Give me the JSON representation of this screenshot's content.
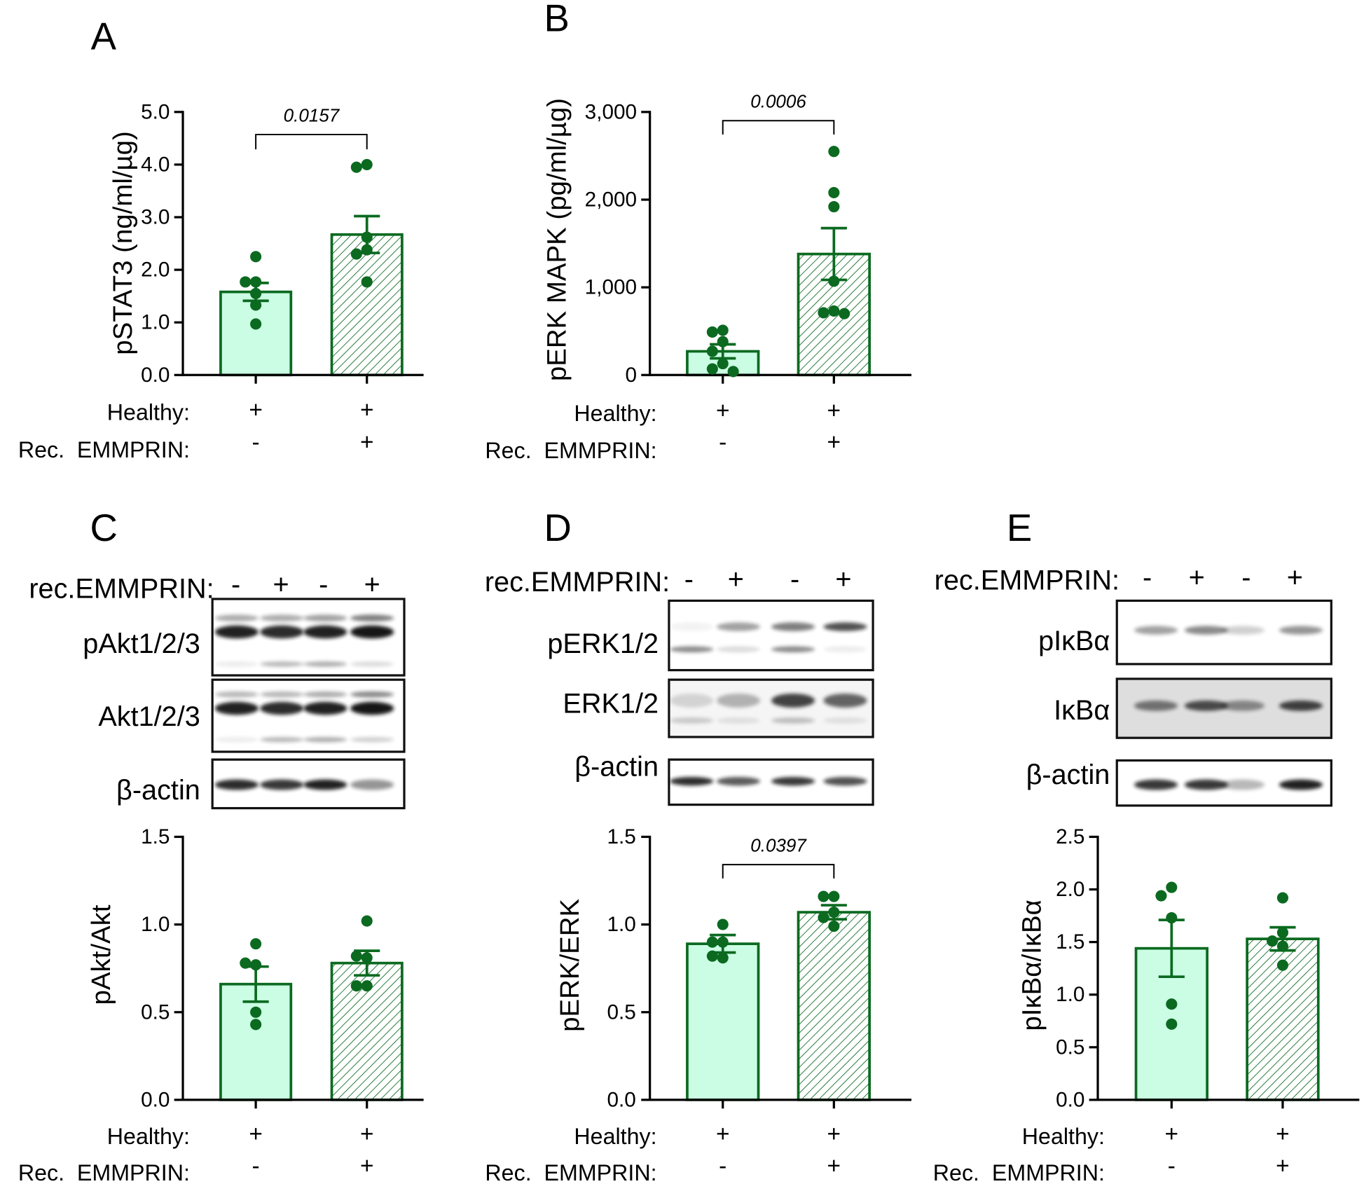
{
  "colors": {
    "bar_stroke": "#0b6a20",
    "control_fill": "#cbfde4",
    "hatch": "#0b6a20",
    "dot": "#0b6a20",
    "axis": "#000000",
    "blot_band": "#141414",
    "blot_frame": "#111111"
  },
  "chart_data": [
    {
      "panel": "A",
      "type": "bar",
      "ylabel": "pSTAT3 (ng/ml/µg)",
      "ylim": [
        0,
        5
      ],
      "yticks": [
        0,
        1,
        2,
        3,
        4,
        5
      ],
      "ytick_labels": [
        "0.0",
        "1.0",
        "2.0",
        "3.0",
        "4.0",
        "5.0"
      ],
      "x_rows": [
        {
          "label": "Healthy:",
          "values": [
            "+",
            "+"
          ]
        },
        {
          "label": "Rec.  EMMPRIN:",
          "values": [
            "-",
            "+"
          ]
        }
      ],
      "bars": [
        {
          "hatched": false,
          "mean": 1.58,
          "sem": 0.17,
          "points": [
            2.25,
            1.77,
            1.77,
            1.55,
            1.33,
            0.97
          ]
        },
        {
          "hatched": true,
          "mean": 2.67,
          "sem": 0.35,
          "points": [
            4.0,
            3.95,
            2.62,
            2.38,
            2.3,
            1.77
          ]
        }
      ],
      "significance": {
        "label": "0.0157",
        "between": [
          0,
          1
        ]
      }
    },
    {
      "panel": "B",
      "type": "bar",
      "ylabel": "pERK MAPK (pg/ml/µg)",
      "ylim": [
        0,
        3000
      ],
      "yticks": [
        0,
        1000,
        2000,
        3000
      ],
      "ytick_labels": [
        "0",
        "1,000",
        "2,000",
        "3,000"
      ],
      "x_rows": [
        {
          "label": "Healthy:",
          "values": [
            "+",
            "+"
          ]
        },
        {
          "label": "Rec.  EMMPRIN:",
          "values": [
            "-",
            "+"
          ]
        }
      ],
      "bars": [
        {
          "hatched": false,
          "mean": 270,
          "sem": 80,
          "points": [
            510,
            490,
            380,
            270,
            130,
            70,
            40
          ]
        },
        {
          "hatched": true,
          "mean": 1380,
          "sem": 295,
          "points": [
            2550,
            2080,
            1920,
            1070,
            730,
            710,
            700
          ]
        }
      ],
      "significance": {
        "label": "0.0006",
        "between": [
          0,
          1
        ]
      }
    },
    {
      "panel": "C",
      "type": "bar",
      "ylabel": "pAkt/Akt",
      "ylim": [
        0,
        1.5
      ],
      "yticks": [
        0,
        0.5,
        1.0,
        1.5
      ],
      "ytick_labels": [
        "0.0",
        "0.5",
        "1.0",
        "1.5"
      ],
      "x_rows": [
        {
          "label": "Healthy:",
          "values": [
            "+",
            "+"
          ]
        },
        {
          "label": "Rec.  EMMPRIN:",
          "values": [
            "-",
            "+"
          ]
        }
      ],
      "bars": [
        {
          "hatched": false,
          "mean": 0.66,
          "sem": 0.1,
          "points": [
            0.89,
            0.77,
            0.78,
            0.5,
            0.43
          ]
        },
        {
          "hatched": true,
          "mean": 0.78,
          "sem": 0.07,
          "points": [
            1.02,
            0.81,
            0.82,
            0.65,
            0.65
          ]
        }
      ],
      "significance": null,
      "blot": {
        "header": "rec.EMMPRIN:",
        "lanes": [
          "-",
          "+",
          "-",
          "+"
        ],
        "rows": [
          {
            "label": "pAkt1/2/3",
            "background": 0,
            "bands": [
              [
                0.35,
                0.35,
                0.4,
                0.55
              ],
              [
                0.95,
                0.9,
                0.95,
                1.0
              ],
              [
                0.08,
                0.3,
                0.35,
                0.15
              ]
            ]
          },
          {
            "label": "Akt1/2/3",
            "background": 0,
            "bands": [
              [
                0.3,
                0.3,
                0.35,
                0.5
              ],
              [
                0.95,
                0.9,
                0.95,
                1.0
              ],
              [
                0.08,
                0.3,
                0.35,
                0.2
              ]
            ]
          },
          {
            "label": "β-actin",
            "background": 0,
            "bands": [
              [
                0.9,
                0.85,
                0.95,
                0.45
              ]
            ]
          }
        ]
      }
    },
    {
      "panel": "D",
      "type": "bar",
      "ylabel": "pERK/ERK",
      "ylim": [
        0,
        1.5
      ],
      "yticks": [
        0,
        0.5,
        1.0,
        1.5
      ],
      "ytick_labels": [
        "0.0",
        "0.5",
        "1.0",
        "1.5"
      ],
      "x_rows": [
        {
          "label": "Healthy:",
          "values": [
            "+",
            "+"
          ]
        },
        {
          "label": "Rec.  EMMPRIN:",
          "values": [
            "-",
            "+"
          ]
        }
      ],
      "bars": [
        {
          "hatched": false,
          "mean": 0.89,
          "sem": 0.05,
          "points": [
            1.0,
            0.9,
            0.9,
            0.81,
            0.82
          ]
        },
        {
          "hatched": true,
          "mean": 1.07,
          "sem": 0.04,
          "points": [
            1.16,
            1.16,
            1.07,
            1.04,
            0.99
          ]
        }
      ],
      "significance": {
        "label": "0.0397",
        "between": [
          0,
          1
        ]
      },
      "blot": {
        "header": "rec.EMMPRIN:",
        "lanes": [
          "-",
          "+",
          "-",
          "+"
        ],
        "rows": [
          {
            "label": "pERK1/2",
            "background": 0,
            "bands": [
              [
                0.05,
                0.4,
                0.55,
                0.75
              ],
              [
                0.5,
                0.15,
                0.5,
                0.08
              ]
            ]
          },
          {
            "label": "ERK1/2",
            "background": 0.04,
            "bands": [
              [
                0.15,
                0.3,
                0.8,
                0.65
              ],
              [
                0.2,
                0.1,
                0.25,
                0.1
              ]
            ]
          },
          {
            "label": "β-actin",
            "background": 0,
            "bands": [
              [
                0.9,
                0.7,
                0.85,
                0.75
              ]
            ]
          }
        ]
      }
    },
    {
      "panel": "E",
      "type": "bar",
      "ylabel": "pIκBα/IκBα",
      "ylim": [
        0,
        2.5
      ],
      "yticks": [
        0,
        0.5,
        1.0,
        1.5,
        2.0,
        2.5
      ],
      "ytick_labels": [
        "0.0",
        "0.5",
        "1.0",
        "1.5",
        "2.0",
        "2.5"
      ],
      "x_rows": [
        {
          "label": "Healthy:",
          "values": [
            "+",
            "+"
          ]
        },
        {
          "label": "Rec.  EMMPRIN:",
          "values": [
            "-",
            "+"
          ]
        }
      ],
      "bars": [
        {
          "hatched": false,
          "mean": 1.44,
          "sem": 0.27,
          "points": [
            2.02,
            1.94,
            1.73,
            0.91,
            0.72
          ]
        },
        {
          "hatched": true,
          "mean": 1.53,
          "sem": 0.11,
          "points": [
            1.92,
            1.59,
            1.51,
            1.46,
            1.28
          ]
        }
      ],
      "significance": null,
      "blot": {
        "header": "rec.EMMPRIN:",
        "lanes": [
          "-",
          "+",
          "-",
          "+"
        ],
        "rows": [
          {
            "label": "pIκBα",
            "background": 0,
            "bands": [
              [
                0.4,
                0.5,
                0.2,
                0.45
              ]
            ]
          },
          {
            "label": "IκBα",
            "background": 0.13,
            "bands": [
              [
                0.55,
                0.75,
                0.45,
                0.8
              ]
            ]
          },
          {
            "label": "β-actin",
            "background": 0,
            "bands": [
              [
                0.85,
                0.85,
                0.3,
                0.95
              ]
            ]
          }
        ]
      }
    }
  ]
}
